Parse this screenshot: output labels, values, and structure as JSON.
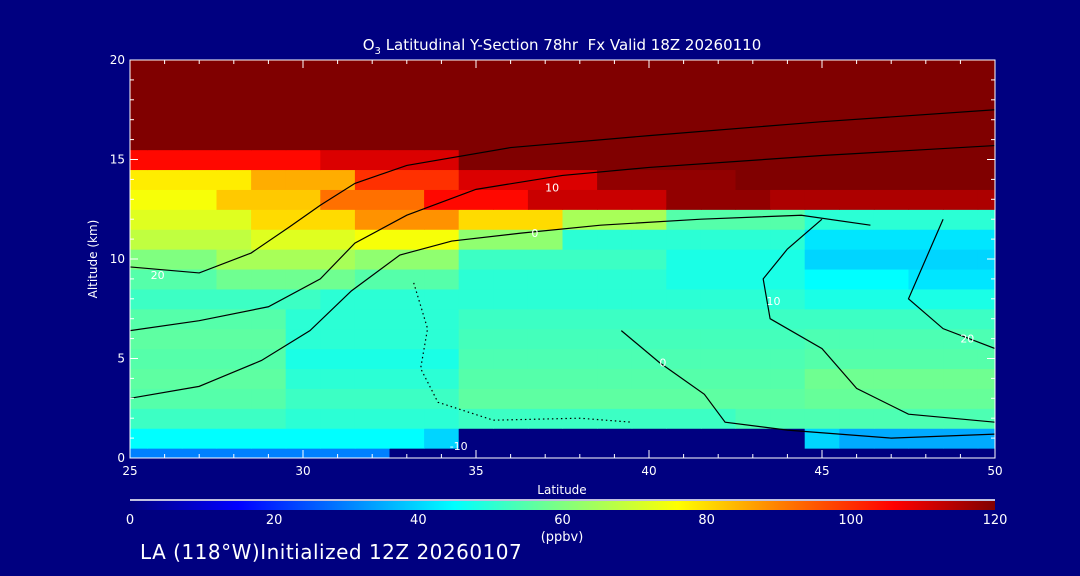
{
  "chart_data": {
    "type": "heatmap",
    "title_prefix": "O",
    "title_subscript": "3",
    "title_rest": " Latitudinal Y-Section 78hr  Fx Valid 18Z 20260110",
    "xlabel": "Latitude",
    "ylabel": "Altitude (km)",
    "xlim": [
      25,
      50
    ],
    "ylim": [
      0,
      20
    ],
    "xticks": [
      "25",
      "30",
      "35",
      "40",
      "45",
      "50"
    ],
    "yticks": [
      "0",
      "5",
      "10",
      "15",
      "20"
    ],
    "x": [
      25,
      26,
      27,
      28,
      29,
      30,
      31,
      32,
      33,
      34,
      35,
      36,
      37,
      38,
      39,
      40,
      41,
      42,
      43,
      44,
      45,
      46,
      47,
      48,
      49,
      50
    ],
    "y": [
      0,
      1,
      2,
      3,
      4,
      5,
      6,
      7,
      8,
      9,
      10,
      11,
      12,
      13,
      14,
      15,
      16,
      17,
      18,
      19,
      20
    ],
    "values_by_altitude": [
      [
        30,
        30,
        30,
        30,
        30,
        30,
        30,
        30,
        0,
        0,
        0,
        0,
        0,
        0,
        0,
        0,
        0,
        0,
        0,
        0,
        0,
        0,
        0,
        0,
        0,
        0
      ],
      [
        45,
        45,
        45,
        45,
        45,
        45,
        45,
        45,
        45,
        40,
        0,
        0,
        0,
        0,
        0,
        0,
        0,
        0,
        0,
        0,
        40,
        35,
        35,
        35,
        35,
        35
      ],
      [
        52,
        52,
        52,
        52,
        52,
        50,
        50,
        50,
        50,
        50,
        52,
        52,
        52,
        52,
        52,
        52,
        52,
        52,
        54,
        54,
        54,
        54,
        54,
        54,
        54,
        54
      ],
      [
        55,
        55,
        55,
        55,
        55,
        52,
        52,
        52,
        52,
        52,
        56,
        56,
        56,
        56,
        56,
        56,
        56,
        56,
        56,
        56,
        57,
        57,
        57,
        57,
        57,
        57
      ],
      [
        56,
        56,
        56,
        56,
        56,
        50,
        50,
        50,
        50,
        50,
        55,
        55,
        55,
        55,
        55,
        55,
        55,
        55,
        55,
        55,
        58,
        58,
        58,
        58,
        58,
        58
      ],
      [
        55,
        55,
        55,
        55,
        55,
        48,
        48,
        48,
        48,
        48,
        54,
        54,
        54,
        54,
        54,
        54,
        54,
        54,
        54,
        54,
        55,
        55,
        55,
        55,
        55,
        55
      ],
      [
        56,
        56,
        56,
        56,
        56,
        50,
        50,
        50,
        50,
        50,
        53,
        53,
        53,
        53,
        53,
        53,
        53,
        53,
        53,
        53,
        54,
        54,
        54,
        54,
        54,
        54
      ],
      [
        55,
        55,
        55,
        55,
        55,
        50,
        50,
        50,
        50,
        50,
        52,
        52,
        52,
        52,
        52,
        52,
        52,
        52,
        52,
        52,
        52,
        52,
        52,
        52,
        52,
        52
      ],
      [
        52,
        52,
        52,
        52,
        52,
        52,
        50,
        50,
        50,
        50,
        50,
        50,
        50,
        50,
        50,
        50,
        50,
        50,
        50,
        50,
        48,
        48,
        48,
        48,
        48,
        48
      ],
      [
        55,
        55,
        55,
        58,
        58,
        58,
        58,
        55,
        55,
        55,
        50,
        50,
        50,
        50,
        50,
        50,
        48,
        48,
        48,
        48,
        45,
        45,
        45,
        42,
        42,
        42
      ],
      [
        60,
        60,
        60,
        65,
        65,
        65,
        65,
        62,
        62,
        62,
        52,
        52,
        52,
        52,
        52,
        52,
        48,
        48,
        48,
        48,
        40,
        40,
        40,
        40,
        40,
        40
      ],
      [
        68,
        68,
        68,
        68,
        72,
        72,
        72,
        75,
        75,
        75,
        62,
        62,
        62,
        50,
        50,
        50,
        50,
        50,
        50,
        50,
        42,
        42,
        42,
        42,
        42,
        42
      ],
      [
        72,
        72,
        72,
        72,
        80,
        80,
        80,
        88,
        88,
        88,
        80,
        80,
        80,
        65,
        65,
        65,
        55,
        55,
        55,
        55,
        50,
        50,
        50,
        50,
        50,
        50
      ],
      [
        75,
        75,
        75,
        82,
        82,
        82,
        92,
        92,
        92,
        105,
        105,
        105,
        112,
        112,
        112,
        112,
        118,
        118,
        118,
        115,
        115,
        115,
        115,
        115,
        115,
        115
      ],
      [
        78,
        78,
        78,
        78,
        85,
        85,
        85,
        100,
        100,
        100,
        110,
        110,
        110,
        110,
        118,
        118,
        118,
        118,
        120,
        120,
        120,
        120,
        120,
        120,
        120,
        120
      ],
      [
        105,
        105,
        105,
        105,
        105,
        105,
        110,
        110,
        110,
        110,
        120,
        120,
        120,
        120,
        120,
        120,
        120,
        120,
        120,
        120,
        120,
        120,
        120,
        120,
        120,
        120
      ],
      [
        120,
        120,
        120,
        120,
        120,
        120,
        120,
        120,
        120,
        120,
        120,
        120,
        120,
        120,
        120,
        120,
        120,
        120,
        120,
        120,
        120,
        120,
        120,
        120,
        120,
        120
      ],
      [
        120,
        120,
        120,
        120,
        120,
        120,
        120,
        120,
        120,
        120,
        120,
        120,
        120,
        120,
        120,
        120,
        120,
        120,
        120,
        120,
        120,
        120,
        120,
        120,
        120,
        120
      ],
      [
        120,
        120,
        120,
        120,
        120,
        120,
        120,
        120,
        120,
        120,
        120,
        120,
        120,
        120,
        120,
        120,
        120,
        120,
        120,
        120,
        120,
        120,
        120,
        120,
        120,
        120
      ],
      [
        120,
        120,
        120,
        120,
        120,
        120,
        120,
        120,
        120,
        120,
        120,
        120,
        120,
        120,
        120,
        120,
        120,
        120,
        120,
        120,
        120,
        120,
        120,
        120,
        120,
        120
      ],
      [
        120,
        120,
        120,
        120,
        120,
        120,
        120,
        120,
        120,
        120,
        120,
        120,
        120,
        120,
        120,
        120,
        120,
        120,
        120,
        120,
        120,
        120,
        120,
        120,
        120,
        120
      ]
    ],
    "contours": [
      {
        "level": "0",
        "dashed": false,
        "label_at": [
          36.7,
          11.3
        ],
        "points": [
          [
            25,
            3.0
          ],
          [
            27,
            3.6
          ],
          [
            28.8,
            4.9
          ],
          [
            30.2,
            6.4
          ],
          [
            31.4,
            8.4
          ],
          [
            32.8,
            10.2
          ],
          [
            34.3,
            10.9
          ],
          [
            36.3,
            11.3
          ],
          [
            38.6,
            11.7
          ],
          [
            41.5,
            12.0
          ],
          [
            44.4,
            12.2
          ],
          [
            46.4,
            11.7
          ]
        ]
      },
      {
        "level": "10",
        "dashed": false,
        "label_at": [
          37.2,
          13.6
        ],
        "points": [
          [
            25,
            6.4
          ],
          [
            27,
            6.9
          ],
          [
            29,
            7.6
          ],
          [
            30.5,
            9
          ],
          [
            31.5,
            10.8
          ],
          [
            33,
            12.2
          ],
          [
            35,
            13.5
          ],
          [
            37.5,
            14.2
          ],
          [
            40,
            14.6
          ],
          [
            45,
            15.2
          ],
          [
            50,
            15.7
          ]
        ]
      },
      {
        "level": "20",
        "dashed": false,
        "label_at": [
          25.8,
          9.2
        ],
        "points": [
          [
            25,
            9.6
          ],
          [
            27,
            9.3
          ],
          [
            28.5,
            10.3
          ],
          [
            29.6,
            11.6
          ],
          [
            30.5,
            12.7
          ],
          [
            31.5,
            13.8
          ],
          [
            33,
            14.7
          ],
          [
            36,
            15.6
          ],
          [
            40,
            16.2
          ],
          [
            45,
            16.9
          ],
          [
            50,
            17.5
          ]
        ]
      },
      {
        "level": "0",
        "dashed": false,
        "label_at": [
          40.4,
          4.8
        ],
        "points": [
          [
            39.2,
            6.4
          ],
          [
            40.3,
            4.8
          ],
          [
            41.6,
            3.2
          ],
          [
            42.2,
            1.8
          ],
          [
            44,
            1.4
          ],
          [
            47,
            1.0
          ],
          [
            50,
            1.2
          ]
        ]
      },
      {
        "level": "10",
        "dashed": false,
        "label_at": [
          43.6,
          7.9
        ],
        "points": [
          [
            45,
            12
          ],
          [
            44,
            10.5
          ],
          [
            43.3,
            9
          ],
          [
            43.5,
            7
          ],
          [
            45,
            5.5
          ],
          [
            46,
            3.5
          ],
          [
            47.5,
            2.2
          ],
          [
            50,
            1.8
          ]
        ]
      },
      {
        "level": "20",
        "dashed": false,
        "label_at": [
          49.2,
          6.0
        ],
        "points": [
          [
            48.5,
            12
          ],
          [
            48,
            10
          ],
          [
            47.5,
            8
          ],
          [
            48.5,
            6.5
          ],
          [
            50,
            5.5
          ]
        ]
      },
      {
        "level": "-10",
        "dashed": true,
        "label_at": [
          34.5,
          0.6
        ],
        "points": [
          [
            33.2,
            8.8
          ],
          [
            33.6,
            6.5
          ],
          [
            33.4,
            4.5
          ],
          [
            33.9,
            2.8
          ],
          [
            35.5,
            1.9
          ],
          [
            38,
            2.0
          ],
          [
            39.5,
            1.8
          ]
        ]
      }
    ],
    "colorbar": {
      "range": [
        0,
        120
      ],
      "ticks": [
        "0",
        "20",
        "40",
        "60",
        "80",
        "100",
        "120"
      ],
      "label": "(ppbv)",
      "stops": [
        [
          0,
          "#00007f"
        ],
        [
          15,
          "#0000ff"
        ],
        [
          30,
          "#0080ff"
        ],
        [
          45,
          "#00ffff"
        ],
        [
          60,
          "#80ff80"
        ],
        [
          76,
          "#ffff00"
        ],
        [
          90,
          "#ff8000"
        ],
        [
          106,
          "#ff0000"
        ],
        [
          120,
          "#800000"
        ]
      ]
    }
  },
  "footer": "LA (118°W)Initialized 12Z 20260107",
  "colors": {
    "background": "#000080",
    "frame": "#ffffff",
    "contour": "#000000"
  }
}
